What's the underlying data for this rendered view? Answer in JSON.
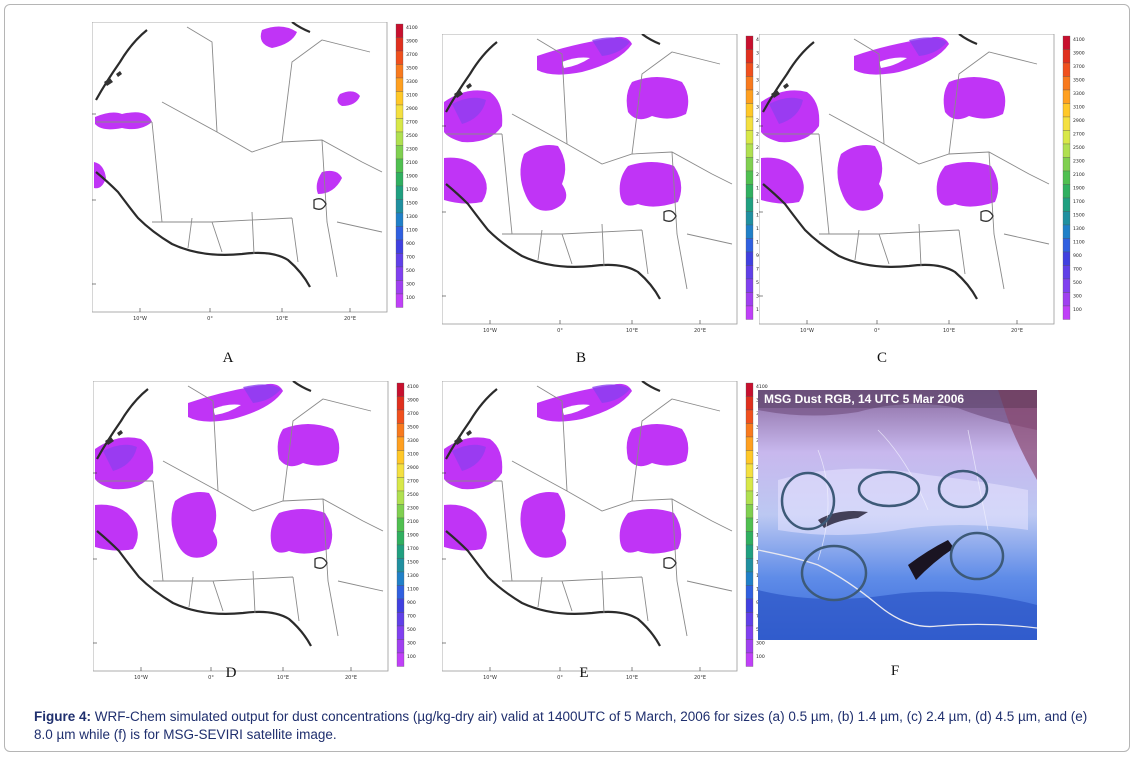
{
  "figure": {
    "caption_label": "Figure 4:",
    "caption_text": " WRF-Chem simulated output for dust concentrations (µg/kg-dry air) valid at 1400UTC of 5 March, 2006 for sizes (a) 0.5 µm, (b) 1.4 µm, (c) 2.4 µm, (d) 4.5 µm, and (e) 8.0 µm while (f) is for MSG-SEVIRI satellite image."
  },
  "panels": [
    {
      "id": "a",
      "label": "A"
    },
    {
      "id": "b",
      "label": "B"
    },
    {
      "id": "c",
      "label": "C"
    },
    {
      "id": "d",
      "label": "D"
    },
    {
      "id": "e",
      "label": "E"
    },
    {
      "id": "f",
      "label": "F"
    }
  ],
  "map_axes": {
    "lat_labels": [
      "25°N",
      "15°N",
      "5°N"
    ],
    "lon_labels": [
      "10°W",
      "0°",
      "10°E",
      "20°E"
    ]
  },
  "colorbar": {
    "ticks": [
      "4100",
      "3900",
      "3700",
      "3500",
      "3300",
      "3100",
      "2900",
      "2700",
      "2500",
      "2300",
      "2100",
      "1900",
      "1700",
      "1500",
      "1300",
      "1100",
      "900",
      "700",
      "500",
      "300",
      "100"
    ],
    "colors": [
      "#c8102e",
      "#e0301e",
      "#f0501e",
      "#f87a1e",
      "#ffa020",
      "#ffc828",
      "#f4e040",
      "#d8e848",
      "#b0e050",
      "#80d050",
      "#50c050",
      "#30b060",
      "#20a080",
      "#2090a0",
      "#2080c8",
      "#3060e0",
      "#4040e0",
      "#6040e8",
      "#8040f0",
      "#a040f0",
      "#c040f8"
    ]
  },
  "satellite": {
    "title": "MSG Dust RGB, 14 UTC 5 Mar 2006"
  },
  "colors": {
    "dust": "#c034f6",
    "dust_dense": "#8a3ff0",
    "caption": "#1f2f6e"
  }
}
